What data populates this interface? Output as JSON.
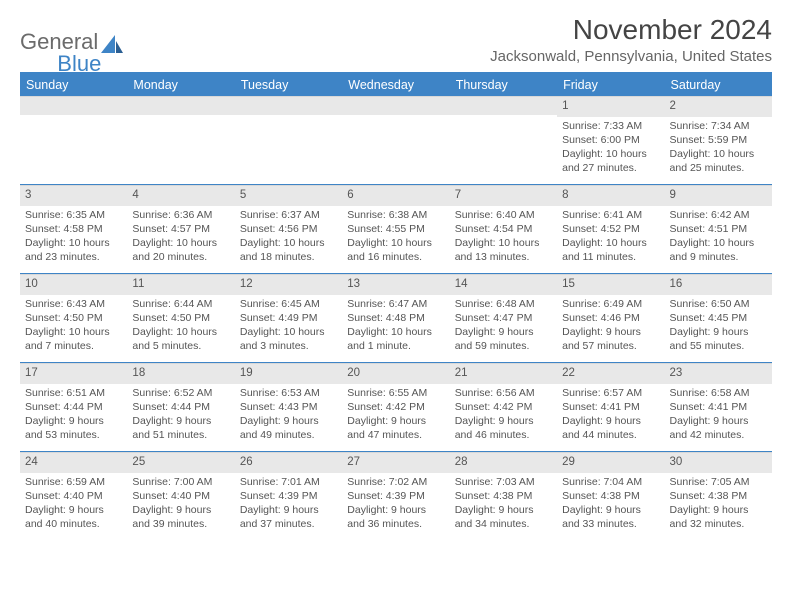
{
  "brand": {
    "part1": "General",
    "part2": "Blue"
  },
  "title": "November 2024",
  "location": "Jacksonwald, Pennsylvania, United States",
  "colors": {
    "accent": "#3e84c6",
    "header_bg": "#3e84c6",
    "daynum_bg": "#e8e8e8",
    "text": "#555555",
    "background": "#ffffff"
  },
  "day_names": [
    "Sunday",
    "Monday",
    "Tuesday",
    "Wednesday",
    "Thursday",
    "Friday",
    "Saturday"
  ],
  "weeks": [
    [
      null,
      null,
      null,
      null,
      null,
      {
        "n": "1",
        "sunrise": "7:33 AM",
        "sunset": "6:00 PM",
        "daylight": "10 hours and 27 minutes."
      },
      {
        "n": "2",
        "sunrise": "7:34 AM",
        "sunset": "5:59 PM",
        "daylight": "10 hours and 25 minutes."
      }
    ],
    [
      {
        "n": "3",
        "sunrise": "6:35 AM",
        "sunset": "4:58 PM",
        "daylight": "10 hours and 23 minutes."
      },
      {
        "n": "4",
        "sunrise": "6:36 AM",
        "sunset": "4:57 PM",
        "daylight": "10 hours and 20 minutes."
      },
      {
        "n": "5",
        "sunrise": "6:37 AM",
        "sunset": "4:56 PM",
        "daylight": "10 hours and 18 minutes."
      },
      {
        "n": "6",
        "sunrise": "6:38 AM",
        "sunset": "4:55 PM",
        "daylight": "10 hours and 16 minutes."
      },
      {
        "n": "7",
        "sunrise": "6:40 AM",
        "sunset": "4:54 PM",
        "daylight": "10 hours and 13 minutes."
      },
      {
        "n": "8",
        "sunrise": "6:41 AM",
        "sunset": "4:52 PM",
        "daylight": "10 hours and 11 minutes."
      },
      {
        "n": "9",
        "sunrise": "6:42 AM",
        "sunset": "4:51 PM",
        "daylight": "10 hours and 9 minutes."
      }
    ],
    [
      {
        "n": "10",
        "sunrise": "6:43 AM",
        "sunset": "4:50 PM",
        "daylight": "10 hours and 7 minutes."
      },
      {
        "n": "11",
        "sunrise": "6:44 AM",
        "sunset": "4:50 PM",
        "daylight": "10 hours and 5 minutes."
      },
      {
        "n": "12",
        "sunrise": "6:45 AM",
        "sunset": "4:49 PM",
        "daylight": "10 hours and 3 minutes."
      },
      {
        "n": "13",
        "sunrise": "6:47 AM",
        "sunset": "4:48 PM",
        "daylight": "10 hours and 1 minute."
      },
      {
        "n": "14",
        "sunrise": "6:48 AM",
        "sunset": "4:47 PM",
        "daylight": "9 hours and 59 minutes."
      },
      {
        "n": "15",
        "sunrise": "6:49 AM",
        "sunset": "4:46 PM",
        "daylight": "9 hours and 57 minutes."
      },
      {
        "n": "16",
        "sunrise": "6:50 AM",
        "sunset": "4:45 PM",
        "daylight": "9 hours and 55 minutes."
      }
    ],
    [
      {
        "n": "17",
        "sunrise": "6:51 AM",
        "sunset": "4:44 PM",
        "daylight": "9 hours and 53 minutes."
      },
      {
        "n": "18",
        "sunrise": "6:52 AM",
        "sunset": "4:44 PM",
        "daylight": "9 hours and 51 minutes."
      },
      {
        "n": "19",
        "sunrise": "6:53 AM",
        "sunset": "4:43 PM",
        "daylight": "9 hours and 49 minutes."
      },
      {
        "n": "20",
        "sunrise": "6:55 AM",
        "sunset": "4:42 PM",
        "daylight": "9 hours and 47 minutes."
      },
      {
        "n": "21",
        "sunrise": "6:56 AM",
        "sunset": "4:42 PM",
        "daylight": "9 hours and 46 minutes."
      },
      {
        "n": "22",
        "sunrise": "6:57 AM",
        "sunset": "4:41 PM",
        "daylight": "9 hours and 44 minutes."
      },
      {
        "n": "23",
        "sunrise": "6:58 AM",
        "sunset": "4:41 PM",
        "daylight": "9 hours and 42 minutes."
      }
    ],
    [
      {
        "n": "24",
        "sunrise": "6:59 AM",
        "sunset": "4:40 PM",
        "daylight": "9 hours and 40 minutes."
      },
      {
        "n": "25",
        "sunrise": "7:00 AM",
        "sunset": "4:40 PM",
        "daylight": "9 hours and 39 minutes."
      },
      {
        "n": "26",
        "sunrise": "7:01 AM",
        "sunset": "4:39 PM",
        "daylight": "9 hours and 37 minutes."
      },
      {
        "n": "27",
        "sunrise": "7:02 AM",
        "sunset": "4:39 PM",
        "daylight": "9 hours and 36 minutes."
      },
      {
        "n": "28",
        "sunrise": "7:03 AM",
        "sunset": "4:38 PM",
        "daylight": "9 hours and 34 minutes."
      },
      {
        "n": "29",
        "sunrise": "7:04 AM",
        "sunset": "4:38 PM",
        "daylight": "9 hours and 33 minutes."
      },
      {
        "n": "30",
        "sunrise": "7:05 AM",
        "sunset": "4:38 PM",
        "daylight": "9 hours and 32 minutes."
      }
    ]
  ],
  "labels": {
    "sunrise": "Sunrise: ",
    "sunset": "Sunset: ",
    "daylight": "Daylight: "
  }
}
